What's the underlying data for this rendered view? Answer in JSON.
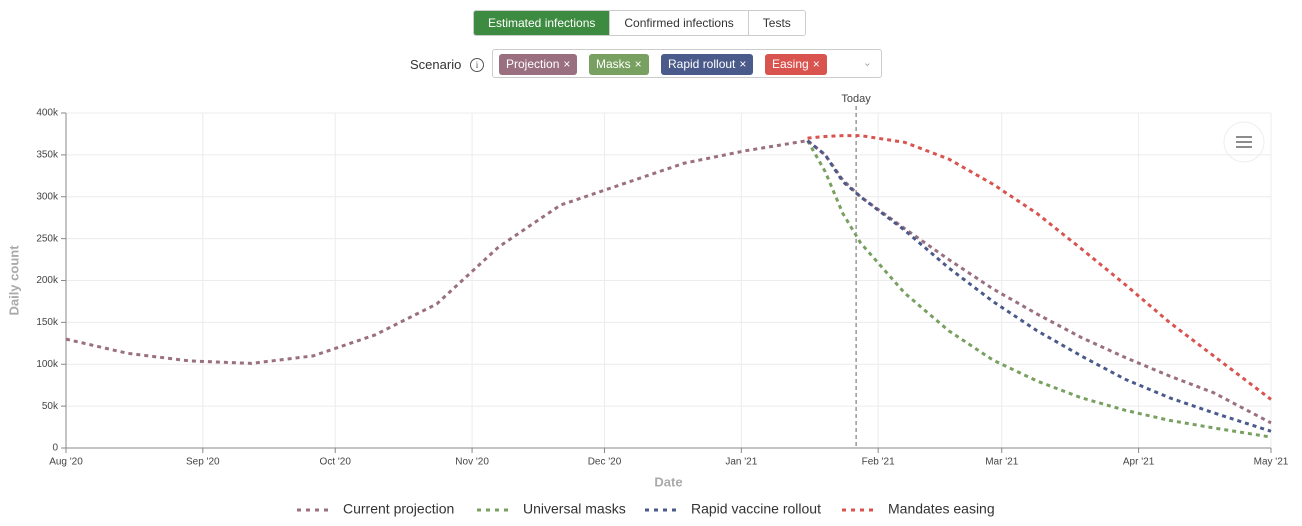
{
  "ui": {
    "tabs": [
      "Estimated infections",
      "Confirmed infections",
      "Tests"
    ],
    "scenario_label": "Scenario",
    "chips": [
      "Projection",
      "Masks",
      "Rapid rollout",
      "Easing"
    ]
  },
  "chart_data": {
    "type": "line",
    "x_label": "Date",
    "y_label": "Daily count",
    "x": [
      0,
      14,
      28,
      42,
      56,
      70,
      84,
      98,
      112,
      126,
      140,
      154,
      168,
      172,
      176,
      180,
      190,
      200,
      210,
      220,
      230,
      240,
      250,
      260,
      273
    ],
    "series": [
      {
        "name": "Current projection",
        "color": "#9a7080",
        "values": [
          130000,
          113000,
          104000,
          101000,
          110000,
          135000,
          172000,
          240000,
          290000,
          315000,
          340000,
          355000,
          367000,
          350000,
          320000,
          300000,
          262000,
          225000,
          190000,
          160000,
          132000,
          108000,
          86000,
          66000,
          30000
        ]
      },
      {
        "name": "Universal masks",
        "color": "#78a060",
        "values": [
          null,
          null,
          null,
          null,
          null,
          null,
          null,
          null,
          null,
          null,
          null,
          null,
          367000,
          330000,
          280000,
          245000,
          185000,
          140000,
          105000,
          80000,
          60000,
          45000,
          33000,
          24000,
          13000
        ]
      },
      {
        "name": "Rapid vaccine rollout",
        "color": "#4a5a8a",
        "values": [
          null,
          null,
          null,
          null,
          null,
          null,
          null,
          null,
          null,
          null,
          null,
          null,
          367000,
          350000,
          318000,
          300000,
          260000,
          215000,
          175000,
          140000,
          110000,
          82000,
          60000,
          42000,
          20000
        ]
      },
      {
        "name": "Mandates easing",
        "color": "#d9534f",
        "values": [
          null,
          null,
          null,
          null,
          null,
          null,
          null,
          null,
          null,
          null,
          null,
          null,
          370000,
          372000,
          373000,
          373000,
          365000,
          345000,
          315000,
          280000,
          238000,
          195000,
          150000,
          110000,
          58000
        ]
      }
    ],
    "xlim": [
      0,
      273
    ],
    "xticks": [
      {
        "value": 0,
        "label": "Aug '20"
      },
      {
        "value": 31,
        "label": "Sep '20"
      },
      {
        "value": 61,
        "label": "Oct '20"
      },
      {
        "value": 92,
        "label": "Nov '20"
      },
      {
        "value": 122,
        "label": "Dec '20"
      },
      {
        "value": 153,
        "label": "Jan '21"
      },
      {
        "value": 184,
        "label": "Feb '21"
      },
      {
        "value": 212,
        "label": "Mar '21"
      },
      {
        "value": 243,
        "label": "Apr '21"
      },
      {
        "value": 273,
        "label": "May '21"
      }
    ],
    "ylim": [
      0,
      400000
    ],
    "yticks": [
      0,
      {
        "value": 50000,
        "label": "50k"
      },
      {
        "value": 100000,
        "label": "100k"
      },
      {
        "value": 150000,
        "label": "150k"
      },
      {
        "value": 200000,
        "label": "200k"
      },
      {
        "value": 250000,
        "label": "250k"
      },
      {
        "value": 300000,
        "label": "300k"
      },
      {
        "value": 350000,
        "label": "350k"
      },
      {
        "value": 400000,
        "label": "400k"
      }
    ],
    "grid": true,
    "legend": "bottom",
    "annotations": [
      {
        "x": 179,
        "label": "Today"
      }
    ]
  }
}
